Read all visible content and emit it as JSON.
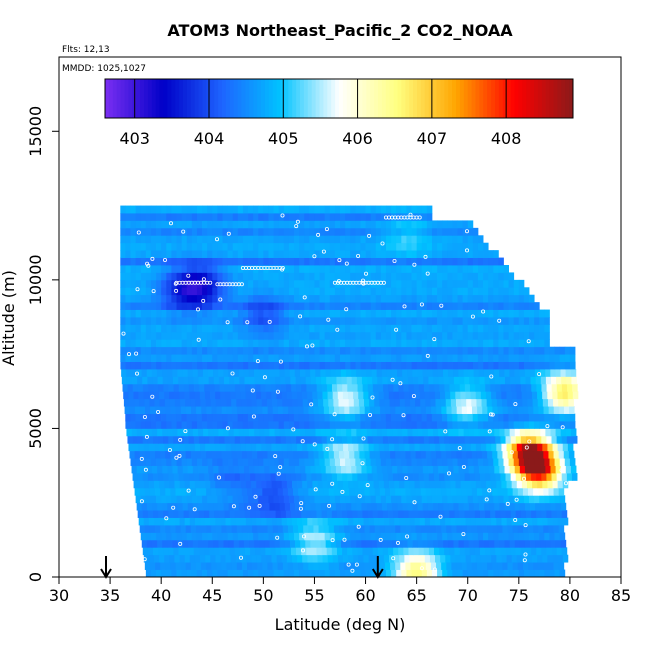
{
  "chart_data": {
    "type": "heatmap",
    "title": "ATOM3 Northeast_Pacific_2 CO2_NOAA",
    "flights_label": "Flts: 12,13",
    "dates_label": "MMDD: 1025,1027",
    "xlabel": "Latitude (deg N)",
    "ylabel": "Altitude (m)",
    "xlim": [
      30,
      85
    ],
    "ylim": [
      0,
      17500
    ],
    "xticks": [
      "30",
      "35",
      "40",
      "45",
      "50",
      "55",
      "60",
      "65",
      "70",
      "75",
      "80",
      "85"
    ],
    "yticks": [
      "0",
      "5000",
      "10000",
      "15000"
    ],
    "colorbar": {
      "range": [
        402.6,
        408.9
      ],
      "tick_labels": [
        "403",
        "404",
        "405",
        "406",
        "407",
        "408"
      ],
      "colors": [
        "#7b2ff2",
        "#0000c8",
        "#1e64ff",
        "#00c3ff",
        "#ffffff",
        "#ffff80",
        "#ffa500",
        "#ff0000",
        "#8b1a1a"
      ]
    },
    "markers": [
      {
        "label": "arrow",
        "latitude": 34.6
      },
      {
        "label": "arrow",
        "latitude": 61.2
      }
    ],
    "hotspots": [
      {
        "lat": 44,
        "alt": 9800,
        "value": 403.3
      },
      {
        "lat": 42,
        "alt": 9700,
        "value": 403.6
      },
      {
        "lat": 50,
        "alt": 8800,
        "value": 403.9
      },
      {
        "lat": 76,
        "alt": 4200,
        "value": 408.4
      },
      {
        "lat": 77,
        "alt": 3600,
        "value": 407.8
      },
      {
        "lat": 79.5,
        "alt": 6200,
        "value": 406.9
      },
      {
        "lat": 58,
        "alt": 6000,
        "value": 405.9
      },
      {
        "lat": 65,
        "alt": 200,
        "value": 406.5
      },
      {
        "lat": 58,
        "alt": 4000,
        "value": 405.7
      },
      {
        "lat": 47,
        "alt": 3200,
        "value": 404.2
      },
      {
        "lat": 51,
        "alt": 2800,
        "value": 403.8
      },
      {
        "lat": 55,
        "alt": 1200,
        "value": 405.6
      },
      {
        "lat": 64,
        "alt": 11500,
        "value": 405.0
      },
      {
        "lat": 70,
        "alt": 5800,
        "value": 405.8
      }
    ]
  }
}
